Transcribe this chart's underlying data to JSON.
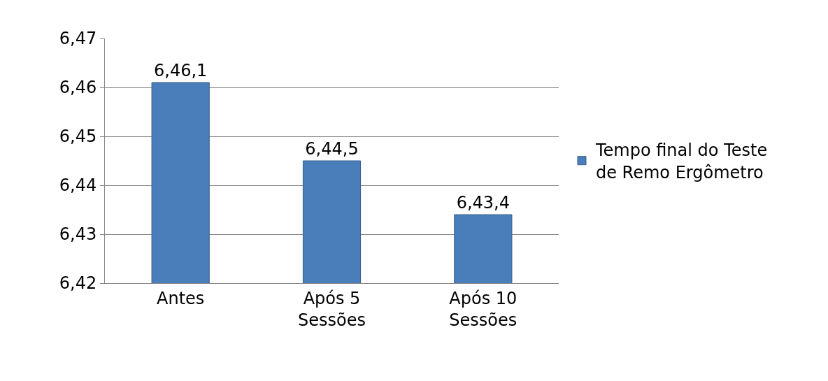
{
  "chart_data": {
    "type": "bar",
    "categories": [
      "Antes",
      "Após 5 Sessões",
      "Após 10 Sessões"
    ],
    "series": [
      {
        "name": "Tempo final do Teste de Remo Ergômetro",
        "color": "#4a7ebb",
        "values": [
          6.461,
          6.445,
          6.434
        ],
        "value_labels": [
          "6,46,1",
          "6,44,5",
          "6,43,4"
        ]
      }
    ],
    "ylim": [
      6.42,
      6.47
    ],
    "yticks": [
      {
        "value": 6.42,
        "label": "6,42"
      },
      {
        "value": 6.43,
        "label": "6,43"
      },
      {
        "value": 6.44,
        "label": "6,44"
      },
      {
        "value": 6.45,
        "label": "6,45"
      },
      {
        "value": 6.46,
        "label": "6,46"
      },
      {
        "value": 6.47,
        "label": "6,47"
      }
    ],
    "grid": "y",
    "legend": "right"
  }
}
